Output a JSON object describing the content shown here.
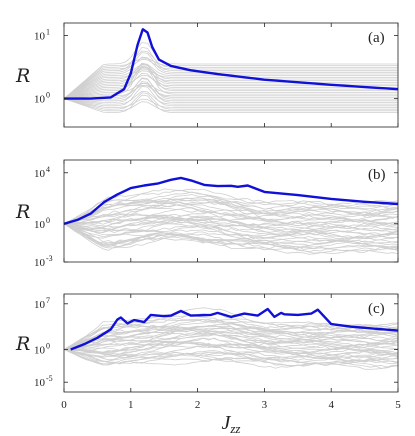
{
  "chart_data": [
    {
      "type": "line",
      "panel_label": "(a)",
      "ylabel": "R",
      "yscale": "log",
      "xlim": [
        0,
        5
      ],
      "yticks": [
        {
          "base": "10",
          "exp": "1"
        },
        {
          "base": "10",
          "exp": "0"
        }
      ],
      "ytick_values": [
        1,
        0
      ],
      "ylim_log": [
        -0.45,
        1.2
      ],
      "series": [
        {
          "color": "#1010d8",
          "x": [
            0,
            0.4,
            0.7,
            0.9,
            1.0,
            1.1,
            1.18,
            1.25,
            1.32,
            1.42,
            1.6,
            1.9,
            2.3,
            3.0,
            4.0,
            5.0
          ],
          "y": [
            0.0,
            0.0,
            0.02,
            0.15,
            0.4,
            0.85,
            1.1,
            1.05,
            0.82,
            0.62,
            0.52,
            0.45,
            0.39,
            0.3,
            0.22,
            0.15
          ]
        }
      ],
      "grey_family": {
        "count": 30,
        "base_from": -0.22,
        "base_to": 0.55,
        "peak_x": 1.2,
        "spread": 0.08
      }
    },
    {
      "type": "line",
      "panel_label": "(b)",
      "ylabel": "R",
      "yscale": "log",
      "xlim": [
        0,
        5
      ],
      "yticks": [
        {
          "base": "10",
          "exp": "4"
        },
        {
          "base": "10",
          "exp": "0"
        },
        {
          "base": "10",
          "exp": "-3"
        }
      ],
      "ytick_values": [
        4,
        0,
        -3
      ],
      "ylim_log": [
        -3,
        5
      ],
      "series": [
        {
          "color": "#1010d8",
          "x": [
            0,
            0.2,
            0.4,
            0.6,
            0.8,
            1.0,
            1.2,
            1.4,
            1.6,
            1.75,
            1.9,
            2.1,
            2.3,
            2.5,
            2.6,
            2.75,
            3.0,
            3.5,
            4.0,
            4.5,
            5.0
          ],
          "y": [
            0.0,
            0.3,
            0.8,
            1.7,
            2.3,
            2.8,
            3.0,
            3.15,
            3.45,
            3.6,
            3.4,
            3.05,
            2.95,
            2.98,
            2.9,
            3.0,
            2.5,
            2.25,
            1.95,
            1.72,
            1.55
          ]
        }
      ],
      "grey_family": {
        "count": 40,
        "base_from": -2.2,
        "base_to": 1.6,
        "peak_x": 1.7,
        "spread": 0.9
      }
    },
    {
      "type": "line",
      "panel_label": "(c)",
      "ylabel": "R",
      "yscale": "log",
      "xlim": [
        0,
        5
      ],
      "xlabel": "Jzz",
      "xticks": [
        "0",
        "1",
        "2",
        "3",
        "4",
        "5"
      ],
      "yticks": [
        {
          "base": "10",
          "exp": "7"
        },
        {
          "base": "10",
          "exp": "0"
        },
        {
          "base": "10",
          "exp": "-5"
        }
      ],
      "ytick_values": [
        7,
        0,
        -5
      ],
      "ylim_log": [
        -6.5,
        8.5
      ],
      "series": [
        {
          "color": "#1010d8",
          "x": [
            0.1,
            0.3,
            0.5,
            0.7,
            0.8,
            0.85,
            0.95,
            1.05,
            1.2,
            1.3,
            1.5,
            1.6,
            1.75,
            1.9,
            2.2,
            2.3,
            2.5,
            2.7,
            2.9,
            3.05,
            3.15,
            3.25,
            3.3,
            3.5,
            3.7,
            3.8,
            4.0,
            4.3,
            5.0
          ],
          "y": [
            0.0,
            0.8,
            1.8,
            3.1,
            4.6,
            4.9,
            4.0,
            4.5,
            4.2,
            5.3,
            5.1,
            5.2,
            5.9,
            5.2,
            5.3,
            5.6,
            5.0,
            5.5,
            5.2,
            6.2,
            5.0,
            5.6,
            5.4,
            5.3,
            5.5,
            6.1,
            3.9,
            3.5,
            2.9
          ]
        }
      ],
      "grey_family": {
        "count": 40,
        "base_from": -2.5,
        "base_to": 3.8,
        "peak_x": 2.0,
        "spread": 1.6
      }
    }
  ]
}
